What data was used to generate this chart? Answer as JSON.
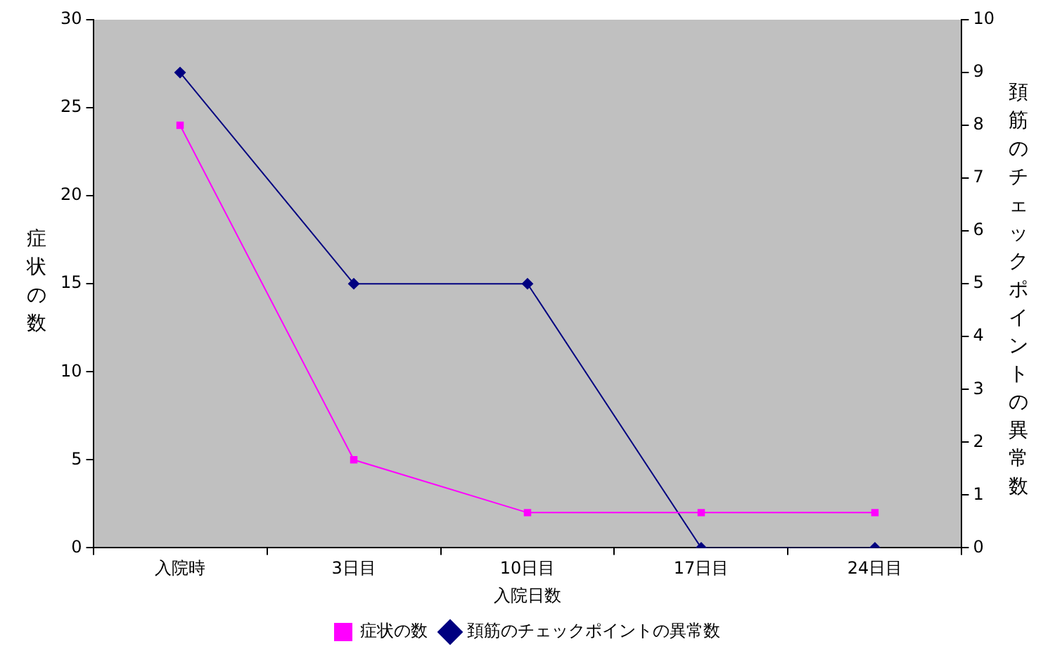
{
  "chart_data": {
    "type": "line",
    "xlabel": "入院日数",
    "ylabel": "症状の数",
    "y2label": "頚筋のチェックポイントの異常数",
    "categories": [
      "入院時",
      "3日目",
      "10日目",
      "17日目",
      "24日目"
    ],
    "series": [
      {
        "name": "症状の数",
        "color": "#ff00ff",
        "values": [
          24,
          5,
          2,
          2,
          2
        ],
        "marker": "square"
      },
      {
        "name": "頚筋のチェックポイントの異常数",
        "color": "#000080",
        "values": [
          9,
          5,
          5,
          0,
          0
        ],
        "axis": "y2",
        "marker": "diamond"
      }
    ],
    "ylim": [
      0,
      30
    ],
    "yticks": [
      0,
      5,
      10,
      15,
      20,
      25,
      30
    ],
    "y2lim": [
      0,
      10
    ],
    "y2ticks": [
      0,
      1,
      2,
      3,
      4,
      5,
      6,
      7,
      8,
      9,
      10
    ],
    "grid": false,
    "legend": "bottom",
    "line_style": "solid"
  }
}
